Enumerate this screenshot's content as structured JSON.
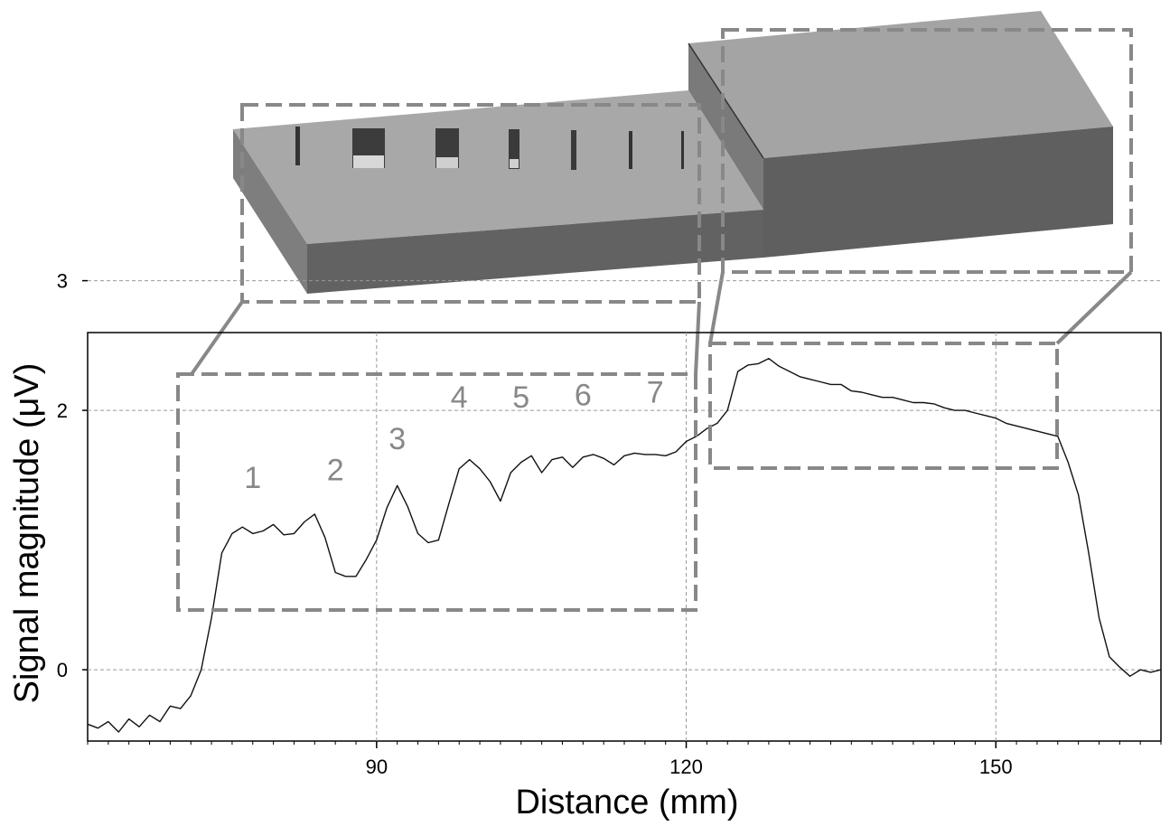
{
  "chart_data": {
    "type": "line",
    "title": "",
    "xlabel": "Distance (mm)",
    "ylabel": "Signal magnitude (μV)",
    "xlim": [
      62,
      166
    ],
    "ylim": [
      -0.55,
      2.6
    ],
    "xticks": [
      90,
      120,
      150
    ],
    "yticks": [
      0,
      2,
      3
    ],
    "ytick_labels": [
      "0",
      "2",
      "3"
    ],
    "grid": true,
    "flaw_labels": [
      {
        "text": "1",
        "x": 78,
        "y": 1.4
      },
      {
        "text": "2",
        "x": 86,
        "y": 1.46
      },
      {
        "text": "3",
        "x": 92,
        "y": 1.7
      },
      {
        "text": "4",
        "x": 98,
        "y": 2.02
      },
      {
        "text": "5",
        "x": 104,
        "y": 2.02
      },
      {
        "text": "6",
        "x": 110,
        "y": 2.04
      },
      {
        "text": "7",
        "x": 117,
        "y": 2.06
      }
    ],
    "series": [
      {
        "x": [
          62,
          63,
          64,
          65,
          66,
          67,
          68,
          69,
          70,
          71,
          72,
          73,
          74,
          75,
          76,
          77,
          78,
          79,
          80,
          81,
          82,
          83,
          84,
          85,
          86,
          87,
          88,
          89,
          90,
          91,
          92,
          93,
          94,
          95,
          96,
          97,
          98,
          99,
          100,
          101,
          102,
          103,
          104,
          105,
          106,
          107,
          108,
          109,
          110,
          111,
          112,
          113,
          114,
          115,
          116,
          117,
          118,
          119,
          120,
          121,
          122,
          123,
          124,
          125,
          126,
          127,
          128,
          129,
          130,
          131,
          132,
          133,
          134,
          135,
          136,
          137,
          138,
          139,
          140,
          141,
          142,
          143,
          144,
          145,
          146,
          147,
          148,
          149,
          150,
          151,
          152,
          153,
          154,
          155,
          156,
          157,
          158,
          159,
          160,
          161,
          162,
          163,
          164,
          165,
          166
        ],
        "y": [
          -0.42,
          -0.45,
          -0.4,
          -0.48,
          -0.38,
          -0.44,
          -0.35,
          -0.4,
          -0.28,
          -0.3,
          -0.2,
          0.0,
          0.4,
          0.9,
          1.05,
          1.1,
          1.05,
          1.07,
          1.12,
          1.04,
          1.05,
          1.14,
          1.2,
          1.02,
          0.75,
          0.72,
          0.72,
          0.85,
          1.0,
          1.25,
          1.42,
          1.26,
          1.05,
          0.98,
          1.0,
          1.28,
          1.55,
          1.62,
          1.55,
          1.45,
          1.3,
          1.52,
          1.6,
          1.65,
          1.52,
          1.62,
          1.64,
          1.56,
          1.64,
          1.66,
          1.63,
          1.58,
          1.65,
          1.67,
          1.66,
          1.66,
          1.65,
          1.68,
          1.76,
          1.8,
          1.86,
          1.9,
          2.0,
          2.3,
          2.35,
          2.36,
          2.4,
          2.34,
          2.3,
          2.26,
          2.24,
          2.22,
          2.2,
          2.2,
          2.15,
          2.14,
          2.12,
          2.1,
          2.1,
          2.08,
          2.06,
          2.06,
          2.05,
          2.02,
          2.0,
          2.0,
          1.98,
          1.96,
          1.94,
          1.9,
          1.88,
          1.86,
          1.84,
          1.82,
          1.8,
          1.6,
          1.35,
          0.9,
          0.4,
          0.1,
          0.02,
          -0.05,
          0.0,
          -0.02,
          0.0
        ]
      }
    ]
  },
  "model": {
    "flaw_slot_count": 7
  }
}
